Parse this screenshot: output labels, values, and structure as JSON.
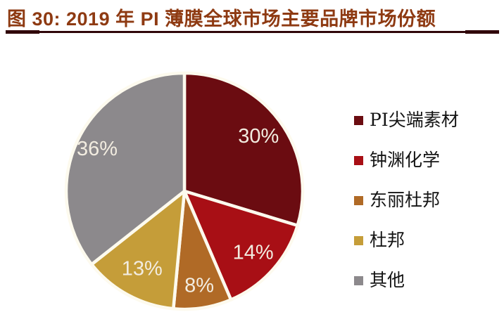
{
  "header": {
    "title": "图 30:  2019 年 PI 薄膜全球市场主要品牌市场份额",
    "title_color": "#8E3A12",
    "rule_color": "#30070A"
  },
  "chart_data": {
    "type": "pie",
    "title": "2019 年 PI 薄膜全球市场主要品牌市场份额",
    "direction": "clockwise",
    "start_angle_deg": 0,
    "legend_position": "right",
    "separator_color": "#FDFAEE",
    "label_color": "#F2ECE0",
    "series": [
      {
        "name": "PI尖端素材",
        "value": 30,
        "label": "30%",
        "color": "#6B0C11"
      },
      {
        "name": "钟渊化学",
        "value": 14,
        "label": "14%",
        "color": "#A80F15"
      },
      {
        "name": "东丽杜邦",
        "value": 8,
        "label": "8%",
        "color": "#B06A26"
      },
      {
        "name": "杜邦",
        "value": 13,
        "label": "13%",
        "color": "#C59D39"
      },
      {
        "name": "其他",
        "value": 36,
        "label": "36%",
        "color": "#8C898C"
      }
    ]
  }
}
